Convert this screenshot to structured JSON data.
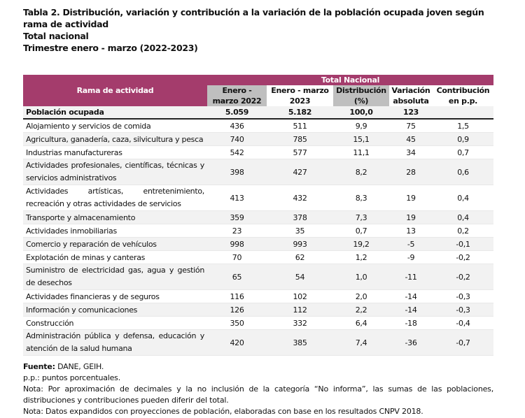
{
  "title": {
    "line1": "Tabla 2. Distribución, variación y contribución a la variación de la población ocupada joven según rama de actividad",
    "line2": "Total nacional",
    "line3": "Trimestre enero - marzo (2022-2023)"
  },
  "header": {
    "rama": "Rama de actividad",
    "group": "Total Nacional",
    "cols": [
      [
        "Enero -",
        "marzo 2022"
      ],
      [
        "Enero - marzo",
        "2023"
      ],
      [
        "Distribución",
        "(%)"
      ],
      [
        "Variación",
        "absoluta"
      ],
      [
        "Contribución",
        "en p.p."
      ]
    ]
  },
  "total": {
    "label": "Población ocupada",
    "values": [
      "5.059",
      "5.182",
      "100,0",
      "123",
      ""
    ]
  },
  "rows": [
    {
      "label": "Alojamiento y servicios de comida",
      "values": [
        "436",
        "511",
        "9,9",
        "75",
        "1,5"
      ]
    },
    {
      "label": "Agricultura, ganadería, caza, silvicultura y pesca",
      "values": [
        "740",
        "785",
        "15,1",
        "45",
        "0,9"
      ]
    },
    {
      "label": "Industrias manufactureras",
      "values": [
        "542",
        "577",
        "11,1",
        "34",
        "0,7"
      ]
    },
    {
      "label": "Actividades profesionales, científicas, técnicas y servicios administrativos",
      "values": [
        "398",
        "427",
        "8,2",
        "28",
        "0,6"
      ]
    },
    {
      "label": "Actividades artísticas, entretenimiento, recreación y otras actividades de servicios",
      "values": [
        "413",
        "432",
        "8,3",
        "19",
        "0,4"
      ]
    },
    {
      "label": "Transporte y almacenamiento",
      "values": [
        "359",
        "378",
        "7,3",
        "19",
        "0,4"
      ]
    },
    {
      "label": "Actividades inmobiliarias",
      "values": [
        "23",
        "35",
        "0,7",
        "13",
        "0,2"
      ]
    },
    {
      "label": "Comercio y reparación de vehículos",
      "values": [
        "998",
        "993",
        "19,2",
        "-5",
        "-0,1"
      ]
    },
    {
      "label": "Explotación de minas y canteras",
      "values": [
        "70",
        "62",
        "1,2",
        "-9",
        "-0,2"
      ]
    },
    {
      "label": "Suministro de electricidad gas, agua y gestión de desechos",
      "values": [
        "65",
        "54",
        "1,0",
        "-11",
        "-0,2"
      ]
    },
    {
      "label": "Actividades financieras y de seguros",
      "values": [
        "116",
        "102",
        "2,0",
        "-14",
        "-0,3"
      ]
    },
    {
      "label": "Información y comunicaciones",
      "values": [
        "126",
        "112",
        "2,2",
        "-14",
        "-0,3"
      ]
    },
    {
      "label": "Construcción",
      "values": [
        "350",
        "332",
        "6,4",
        "-18",
        "-0,4"
      ]
    },
    {
      "label": "Administración pública y defensa, educación y atención de la salud humana",
      "values": [
        "420",
        "385",
        "7,4",
        "-36",
        "-0,7"
      ]
    }
  ],
  "footer": {
    "fuente_label": "Fuente:",
    "fuente": " DANE, GEIH.",
    "pp": "p.p.: puntos porcentuales.",
    "nota1": "Nota: Por aproximación de decimales y la no inclusión de la categoría “No informa”, las sumas de las poblaciones, distribuciones y contribuciones pueden diferir del total.",
    "nota2": "Nota: Datos expandidos con proyecciones de población, elaboradas con base en los resultados CNPV 2018."
  },
  "colors": {
    "header": "#a43c6c",
    "subheader_gray": "#bfbfbf",
    "row_alt": "#f2f2f2"
  }
}
